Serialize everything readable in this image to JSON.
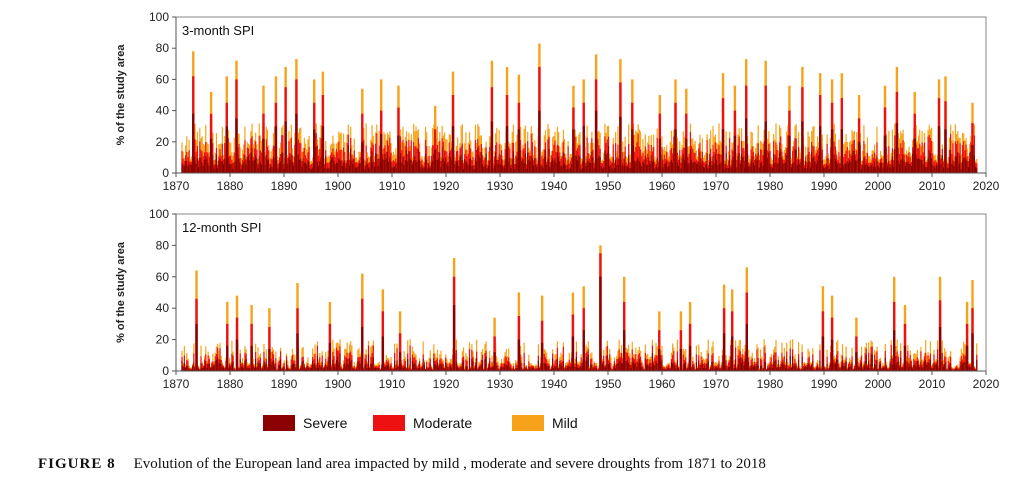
{
  "colors": {
    "severe": "#8b0000",
    "moderate": "#ee1111",
    "mild": "#f7a21a",
    "axis": "#555555"
  },
  "legend": [
    {
      "key": "severe",
      "label": "Severe"
    },
    {
      "key": "moderate",
      "label": "Moderate"
    },
    {
      "key": "mild",
      "label": "Mild"
    }
  ],
  "caption": {
    "number": "FIGURE 8",
    "text": "Evolution of the European land area impacted by mild , moderate and severe droughts from 1871 to 2018"
  },
  "chart_data": [
    {
      "type": "area",
      "title": "3-month SPI",
      "ylabel": "% of the study area",
      "xlim": [
        1870,
        2020
      ],
      "ylim": [
        0,
        100
      ],
      "xticks": [
        1870,
        1880,
        1890,
        1900,
        1910,
        1920,
        1930,
        1940,
        1950,
        1960,
        1970,
        1980,
        1990,
        2000,
        2010,
        2020
      ],
      "yticks": [
        0,
        20,
        40,
        60,
        80,
        100
      ],
      "stacked": true,
      "grid": false,
      "series_order": [
        "severe",
        "moderate",
        "mild"
      ],
      "peaks": [
        {
          "year": 1873.2,
          "mild": 78,
          "moderate": 62,
          "severe": 38
        },
        {
          "year": 1876.5,
          "mild": 52,
          "moderate": 38,
          "severe": 22
        },
        {
          "year": 1879.4,
          "mild": 62,
          "moderate": 45,
          "severe": 30
        },
        {
          "year": 1881.2,
          "mild": 72,
          "moderate": 60,
          "severe": 35
        },
        {
          "year": 1886.2,
          "mild": 56,
          "moderate": 38,
          "severe": 22
        },
        {
          "year": 1888.5,
          "mild": 62,
          "moderate": 45,
          "severe": 30
        },
        {
          "year": 1890.3,
          "mild": 68,
          "moderate": 55,
          "severe": 33
        },
        {
          "year": 1892.3,
          "mild": 73,
          "moderate": 60,
          "severe": 38
        },
        {
          "year": 1895.6,
          "mild": 60,
          "moderate": 45,
          "severe": 28
        },
        {
          "year": 1897.2,
          "mild": 65,
          "moderate": 50,
          "severe": 30
        },
        {
          "year": 1904.5,
          "mild": 54,
          "moderate": 38,
          "severe": 20
        },
        {
          "year": 1908.0,
          "mild": 60,
          "moderate": 40,
          "severe": 25
        },
        {
          "year": 1911.2,
          "mild": 56,
          "moderate": 42,
          "severe": 24
        },
        {
          "year": 1918.0,
          "mild": 43,
          "moderate": 28,
          "severe": 15
        },
        {
          "year": 1921.3,
          "mild": 65,
          "moderate": 50,
          "severe": 30
        },
        {
          "year": 1928.5,
          "mild": 72,
          "moderate": 55,
          "severe": 33
        },
        {
          "year": 1931.3,
          "mild": 68,
          "moderate": 50,
          "severe": 30
        },
        {
          "year": 1933.5,
          "mild": 63,
          "moderate": 45,
          "severe": 28
        },
        {
          "year": 1937.3,
          "mild": 83,
          "moderate": 68,
          "severe": 40
        },
        {
          "year": 1943.6,
          "mild": 56,
          "moderate": 42,
          "severe": 28
        },
        {
          "year": 1945.5,
          "mild": 60,
          "moderate": 45,
          "severe": 30
        },
        {
          "year": 1947.8,
          "mild": 76,
          "moderate": 60,
          "severe": 40
        },
        {
          "year": 1952.3,
          "mild": 73,
          "moderate": 58,
          "severe": 36
        },
        {
          "year": 1954.5,
          "mild": 60,
          "moderate": 45,
          "severe": 28
        },
        {
          "year": 1959.6,
          "mild": 50,
          "moderate": 38,
          "severe": 22
        },
        {
          "year": 1962.5,
          "mild": 60,
          "moderate": 45,
          "severe": 28
        },
        {
          "year": 1964.5,
          "mild": 54,
          "moderate": 38,
          "severe": 22
        },
        {
          "year": 1971.3,
          "mild": 64,
          "moderate": 48,
          "severe": 28
        },
        {
          "year": 1973.5,
          "mild": 56,
          "moderate": 40,
          "severe": 24
        },
        {
          "year": 1975.6,
          "mild": 73,
          "moderate": 56,
          "severe": 35
        },
        {
          "year": 1979.2,
          "mild": 72,
          "moderate": 56,
          "severe": 33
        },
        {
          "year": 1983.6,
          "mild": 56,
          "moderate": 40,
          "severe": 24
        },
        {
          "year": 1986.0,
          "mild": 68,
          "moderate": 55,
          "severe": 33
        },
        {
          "year": 1989.3,
          "mild": 64,
          "moderate": 50,
          "severe": 30
        },
        {
          "year": 1991.5,
          "mild": 60,
          "moderate": 45,
          "severe": 28
        },
        {
          "year": 1993.3,
          "mild": 64,
          "moderate": 48,
          "severe": 28
        },
        {
          "year": 1996.5,
          "mild": 50,
          "moderate": 35,
          "severe": 20
        },
        {
          "year": 2001.3,
          "mild": 56,
          "moderate": 42,
          "severe": 24
        },
        {
          "year": 2003.5,
          "mild": 68,
          "moderate": 52,
          "severe": 32
        },
        {
          "year": 2006.8,
          "mild": 52,
          "moderate": 38,
          "severe": 22
        },
        {
          "year": 2011.3,
          "mild": 60,
          "moderate": 48,
          "severe": 30
        },
        {
          "year": 2012.5,
          "mild": 62,
          "moderate": 46,
          "severe": 28
        },
        {
          "year": 2017.5,
          "mild": 45,
          "moderate": 32,
          "severe": 18
        }
      ]
    },
    {
      "type": "area",
      "title": "12-month SPI",
      "ylabel": "% of the study area",
      "xlim": [
        1870,
        2020
      ],
      "ylim": [
        0,
        100
      ],
      "xticks": [
        1870,
        1880,
        1890,
        1900,
        1910,
        1920,
        1930,
        1940,
        1950,
        1960,
        1970,
        1980,
        1990,
        2000,
        2010,
        2020
      ],
      "yticks": [
        0,
        20,
        40,
        60,
        80,
        100
      ],
      "stacked": true,
      "grid": false,
      "series_order": [
        "severe",
        "moderate",
        "mild"
      ],
      "peaks": [
        {
          "year": 1873.8,
          "mild": 64,
          "moderate": 46,
          "severe": 30
        },
        {
          "year": 1879.5,
          "mild": 44,
          "moderate": 30,
          "severe": 16
        },
        {
          "year": 1881.3,
          "mild": 48,
          "moderate": 34,
          "severe": 20
        },
        {
          "year": 1884.0,
          "mild": 42,
          "moderate": 30,
          "severe": 16
        },
        {
          "year": 1887.3,
          "mild": 40,
          "moderate": 28,
          "severe": 14
        },
        {
          "year": 1892.5,
          "mild": 56,
          "moderate": 40,
          "severe": 24
        },
        {
          "year": 1898.5,
          "mild": 44,
          "moderate": 30,
          "severe": 18
        },
        {
          "year": 1904.5,
          "mild": 62,
          "moderate": 46,
          "severe": 28
        },
        {
          "year": 1908.3,
          "mild": 52,
          "moderate": 38,
          "severe": 22
        },
        {
          "year": 1911.5,
          "mild": 38,
          "moderate": 24,
          "severe": 12
        },
        {
          "year": 1921.5,
          "mild": 72,
          "moderate": 60,
          "severe": 42
        },
        {
          "year": 1929.0,
          "mild": 34,
          "moderate": 22,
          "severe": 12
        },
        {
          "year": 1933.5,
          "mild": 50,
          "moderate": 35,
          "severe": 20
        },
        {
          "year": 1937.8,
          "mild": 48,
          "moderate": 32,
          "severe": 18
        },
        {
          "year": 1943.5,
          "mild": 50,
          "moderate": 36,
          "severe": 22
        },
        {
          "year": 1945.5,
          "mild": 54,
          "moderate": 40,
          "severe": 26
        },
        {
          "year": 1948.6,
          "mild": 80,
          "moderate": 75,
          "severe": 60
        },
        {
          "year": 1953.0,
          "mild": 60,
          "moderate": 44,
          "severe": 26
        },
        {
          "year": 1959.5,
          "mild": 38,
          "moderate": 26,
          "severe": 14
        },
        {
          "year": 1963.5,
          "mild": 38,
          "moderate": 26,
          "severe": 14
        },
        {
          "year": 1965.2,
          "mild": 44,
          "moderate": 30,
          "severe": 16
        },
        {
          "year": 1971.5,
          "mild": 55,
          "moderate": 40,
          "severe": 24
        },
        {
          "year": 1973.0,
          "mild": 52,
          "moderate": 38,
          "severe": 22
        },
        {
          "year": 1975.7,
          "mild": 66,
          "moderate": 50,
          "severe": 30
        },
        {
          "year": 1989.8,
          "mild": 54,
          "moderate": 38,
          "severe": 22
        },
        {
          "year": 1991.5,
          "mild": 48,
          "moderate": 34,
          "severe": 20
        },
        {
          "year": 1996.0,
          "mild": 34,
          "moderate": 22,
          "severe": 12
        },
        {
          "year": 2003.0,
          "mild": 60,
          "moderate": 44,
          "severe": 26
        },
        {
          "year": 2005.0,
          "mild": 42,
          "moderate": 30,
          "severe": 16
        },
        {
          "year": 2011.5,
          "mild": 60,
          "moderate": 45,
          "severe": 28
        },
        {
          "year": 2016.5,
          "mild": 44,
          "moderate": 30,
          "severe": 16
        },
        {
          "year": 2017.5,
          "mild": 58,
          "moderate": 40,
          "severe": 24
        }
      ]
    }
  ]
}
